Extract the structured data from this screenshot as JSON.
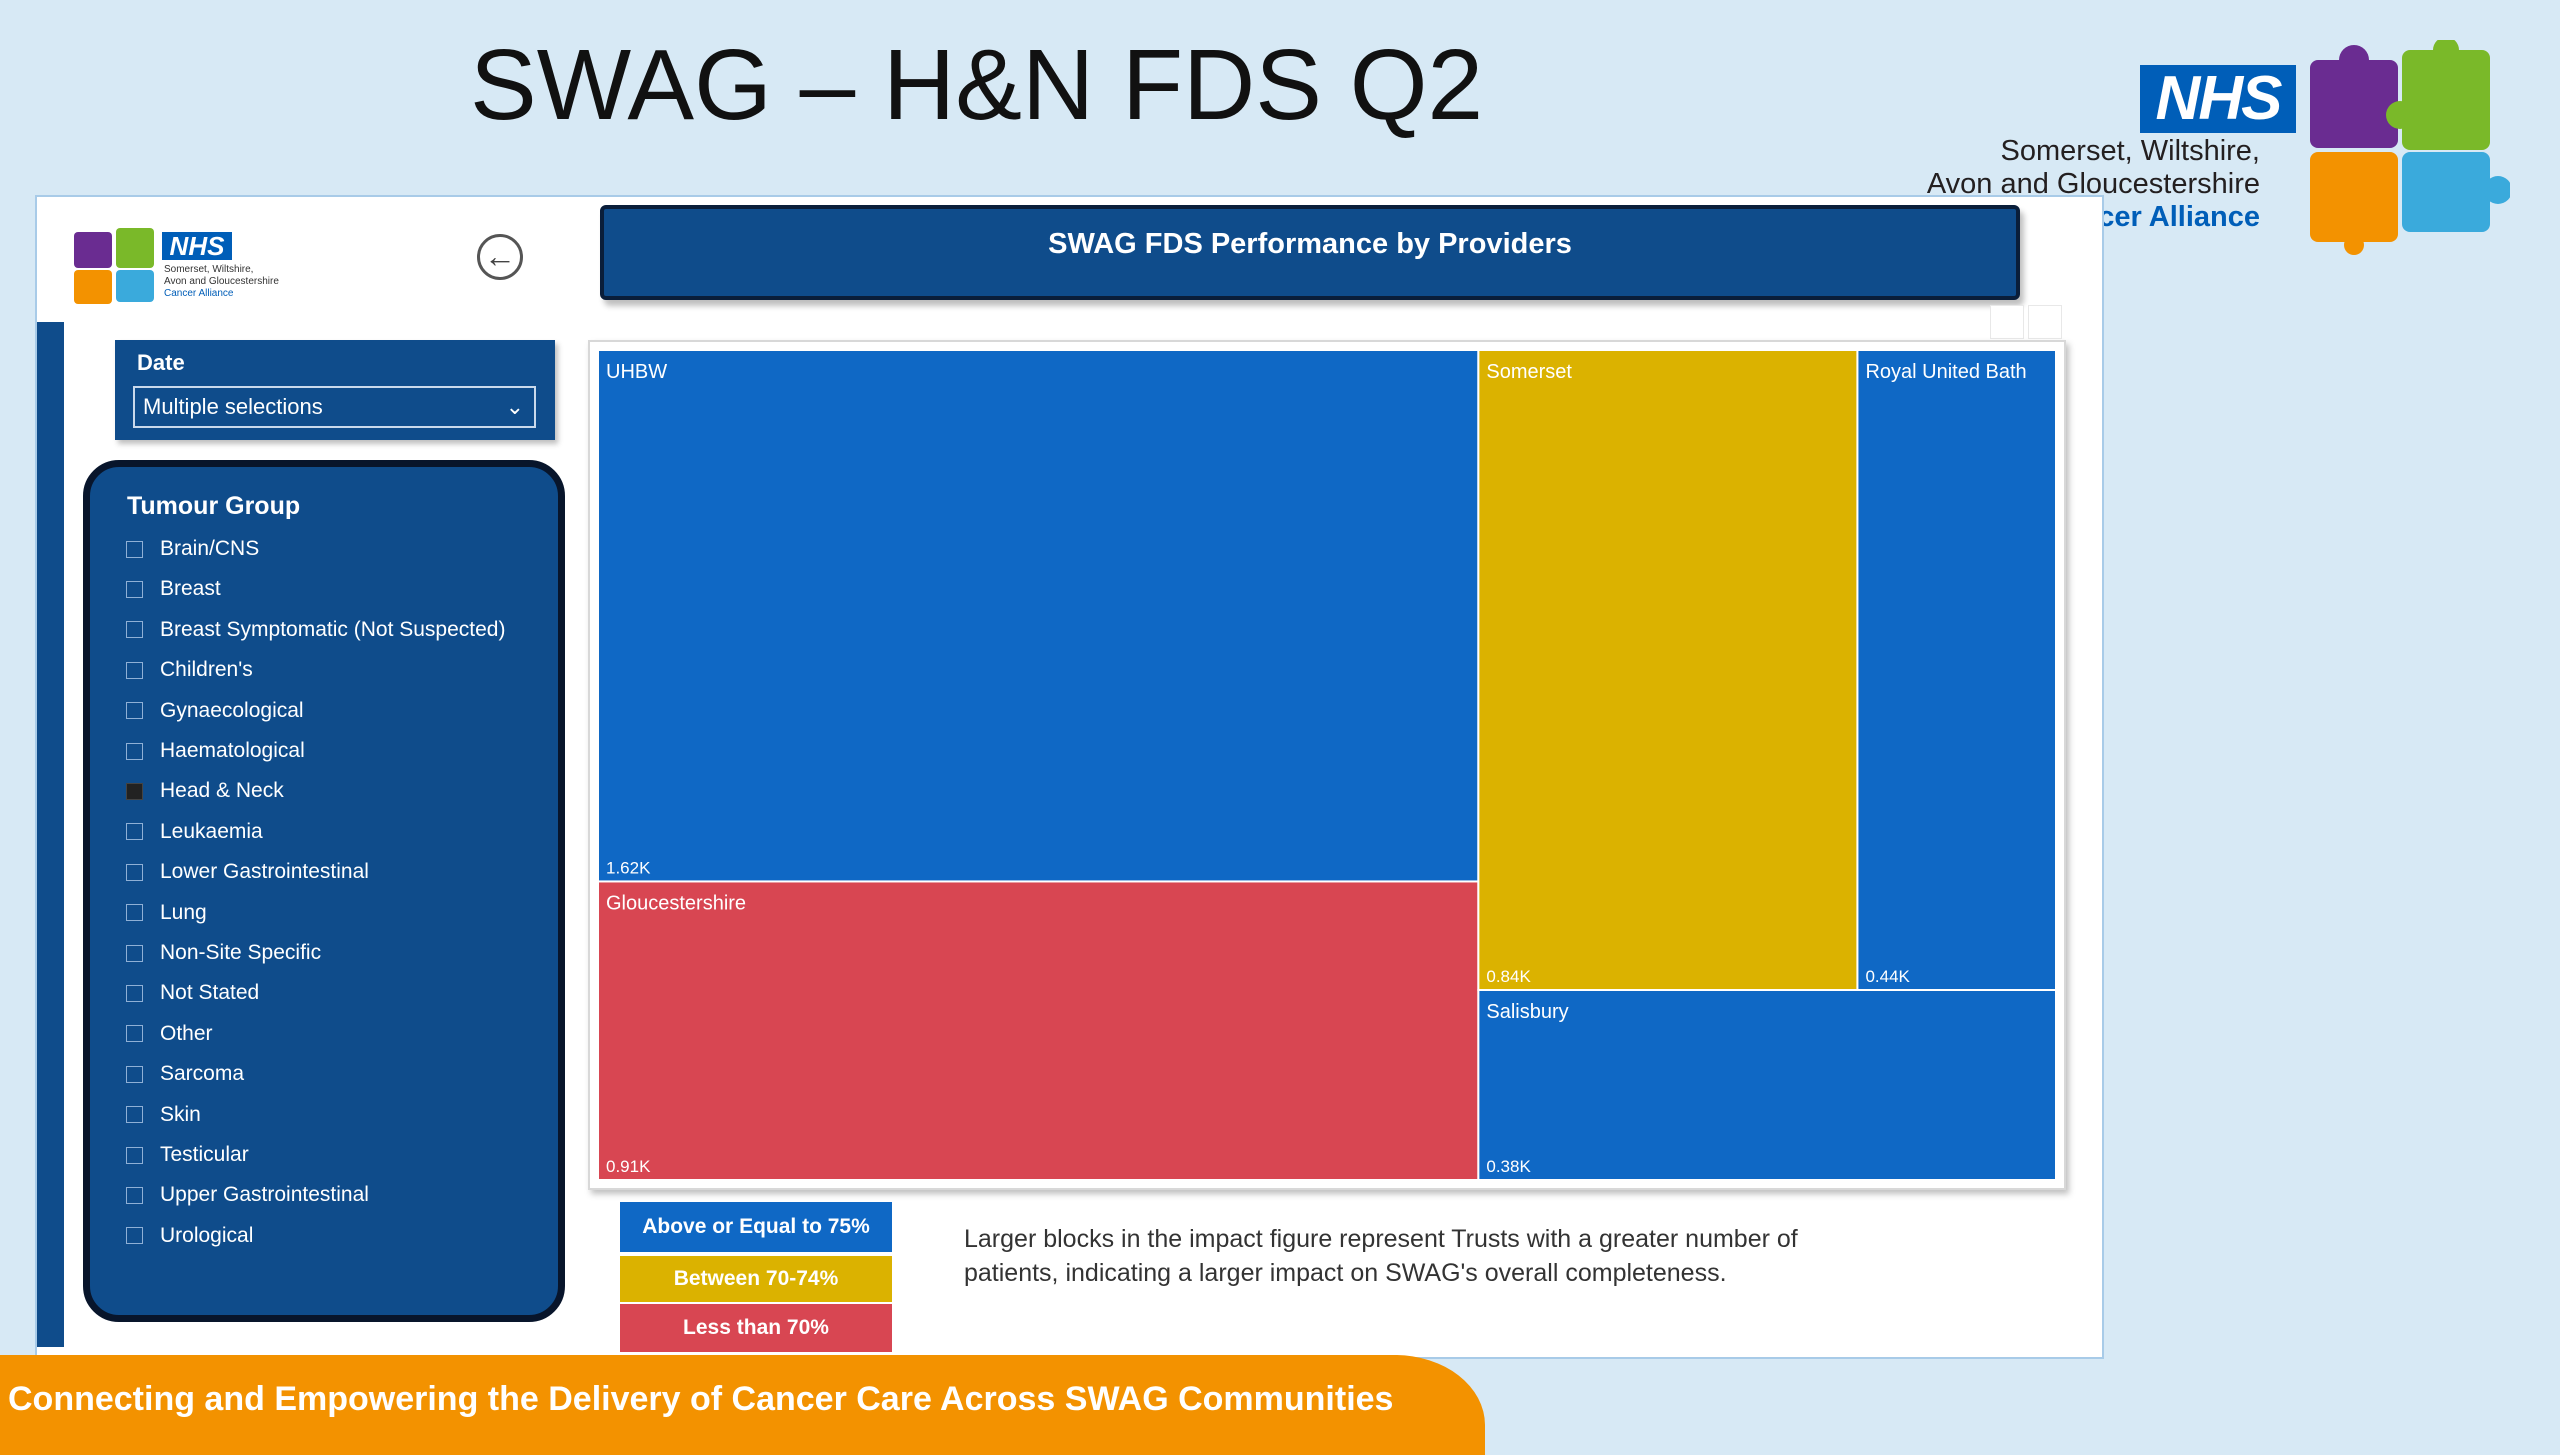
{
  "slide": {
    "title": "SWAG – H&N FDS Q2",
    "footer_text": "Connecting and Empowering the Delivery of Cancer Care Across SWAG Communities"
  },
  "logo": {
    "nhs": "NHS",
    "line1": "Somerset, Wiltshire,",
    "line2": "Avon and Gloucestershire",
    "line3": "Cancer Alliance",
    "colors": {
      "purple": "#6a2c91",
      "green": "#7ab929",
      "orange": "#f39200",
      "light_blue": "#3aaadc",
      "nhs_blue": "#005eb8"
    }
  },
  "report": {
    "title": "SWAG FDS Performance by Providers",
    "back_icon": "back-arrow-icon",
    "date_slicer": {
      "label": "Date",
      "value": "Multiple selections"
    },
    "tumour_group": {
      "title": "Tumour Group",
      "items": [
        {
          "label": "Brain/CNS",
          "checked": false
        },
        {
          "label": "Breast",
          "checked": false
        },
        {
          "label": "Breast Symptomatic (Not Suspected)",
          "checked": false
        },
        {
          "label": "Children's",
          "checked": false
        },
        {
          "label": "Gynaecological",
          "checked": false
        },
        {
          "label": "Haematological",
          "checked": false
        },
        {
          "label": "Head & Neck",
          "checked": true
        },
        {
          "label": "Leukaemia",
          "checked": false
        },
        {
          "label": "Lower Gastrointestinal",
          "checked": false
        },
        {
          "label": "Lung",
          "checked": false
        },
        {
          "label": "Non-Site Specific",
          "checked": false
        },
        {
          "label": "Not Stated",
          "checked": false
        },
        {
          "label": "Other",
          "checked": false
        },
        {
          "label": "Sarcoma",
          "checked": false
        },
        {
          "label": "Skin",
          "checked": false
        },
        {
          "label": "Testicular",
          "checked": false
        },
        {
          "label": "Upper Gastrointestinal",
          "checked": false
        },
        {
          "label": "Urological",
          "checked": false
        }
      ]
    },
    "legend": [
      {
        "label": "Above or Equal to 75%",
        "color": "#0f68c5"
      },
      {
        "label": "Between 70-74%",
        "color": "#dbb200"
      },
      {
        "label": "Less than 70%",
        "color": "#d84652"
      }
    ],
    "note": "Larger blocks in the impact figure represent Trusts with a greater number of patients, indicating a larger impact on SWAG's overall completeness."
  },
  "chart_data": {
    "type": "treemap",
    "items": [
      {
        "name": "UHBW",
        "value": 1620,
        "label": "1.62K",
        "band": "Above or Equal to 75%",
        "color": "#0f68c5"
      },
      {
        "name": "Gloucestershire",
        "value": 910,
        "label": "0.91K",
        "band": "Less than 70%",
        "color": "#d84652"
      },
      {
        "name": "Somerset",
        "value": 840,
        "label": "0.84K",
        "band": "Between 70-74%",
        "color": "#dbb200"
      },
      {
        "name": "Royal United Bath",
        "value": 440,
        "label": "0.44K",
        "band": "Above or Equal to 75%",
        "color": "#0f68c5"
      },
      {
        "name": "Salisbury",
        "value": 380,
        "label": "0.38K",
        "band": "Above or Equal to 75%",
        "color": "#0f68c5"
      }
    ]
  }
}
